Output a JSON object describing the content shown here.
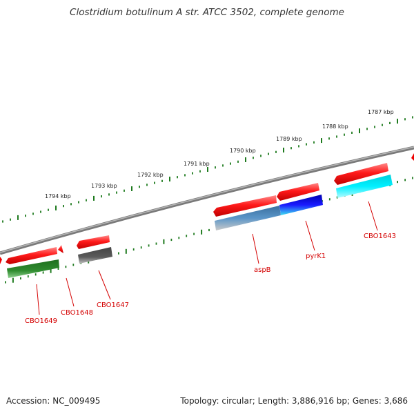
{
  "title": "Clostridium botulinum A str. ATCC 3502, complete genome",
  "footer": {
    "accession": "Accession: NC_009495",
    "info": "Topology: circular; Length: 3,886,916 bp; Genes: 3,686"
  },
  "colors": {
    "backbone": "#7a7a7a",
    "tick": "#1e7a1e",
    "gene_forward": "#ee0000",
    "label": "#d40000",
    "cds_green": "#2e8b2e",
    "cds_gray": "#5a5a5a",
    "cds_steelblue": "#4682b4",
    "cds_blue": "#1010dd",
    "cds_cyan": "#00e5ee"
  },
  "scale_labels": [
    "1794 kbp",
    "1793 kbp",
    "1792 kbp",
    "1791 kbp",
    "1790 kbp",
    "1789 kbp",
    "1788 kbp",
    "1787 kbp"
  ],
  "genes": [
    {
      "name": "CBO1649",
      "color": "cds_green"
    },
    {
      "name": "CBO1648",
      "color": "gene_forward"
    },
    {
      "name": "CBO1647",
      "color": "cds_gray"
    },
    {
      "name": "aspB",
      "color": "cds_steelblue"
    },
    {
      "name": "pyrK1",
      "color": "cds_blue"
    },
    {
      "name": "CBO1643",
      "color": "cds_cyan"
    }
  ]
}
